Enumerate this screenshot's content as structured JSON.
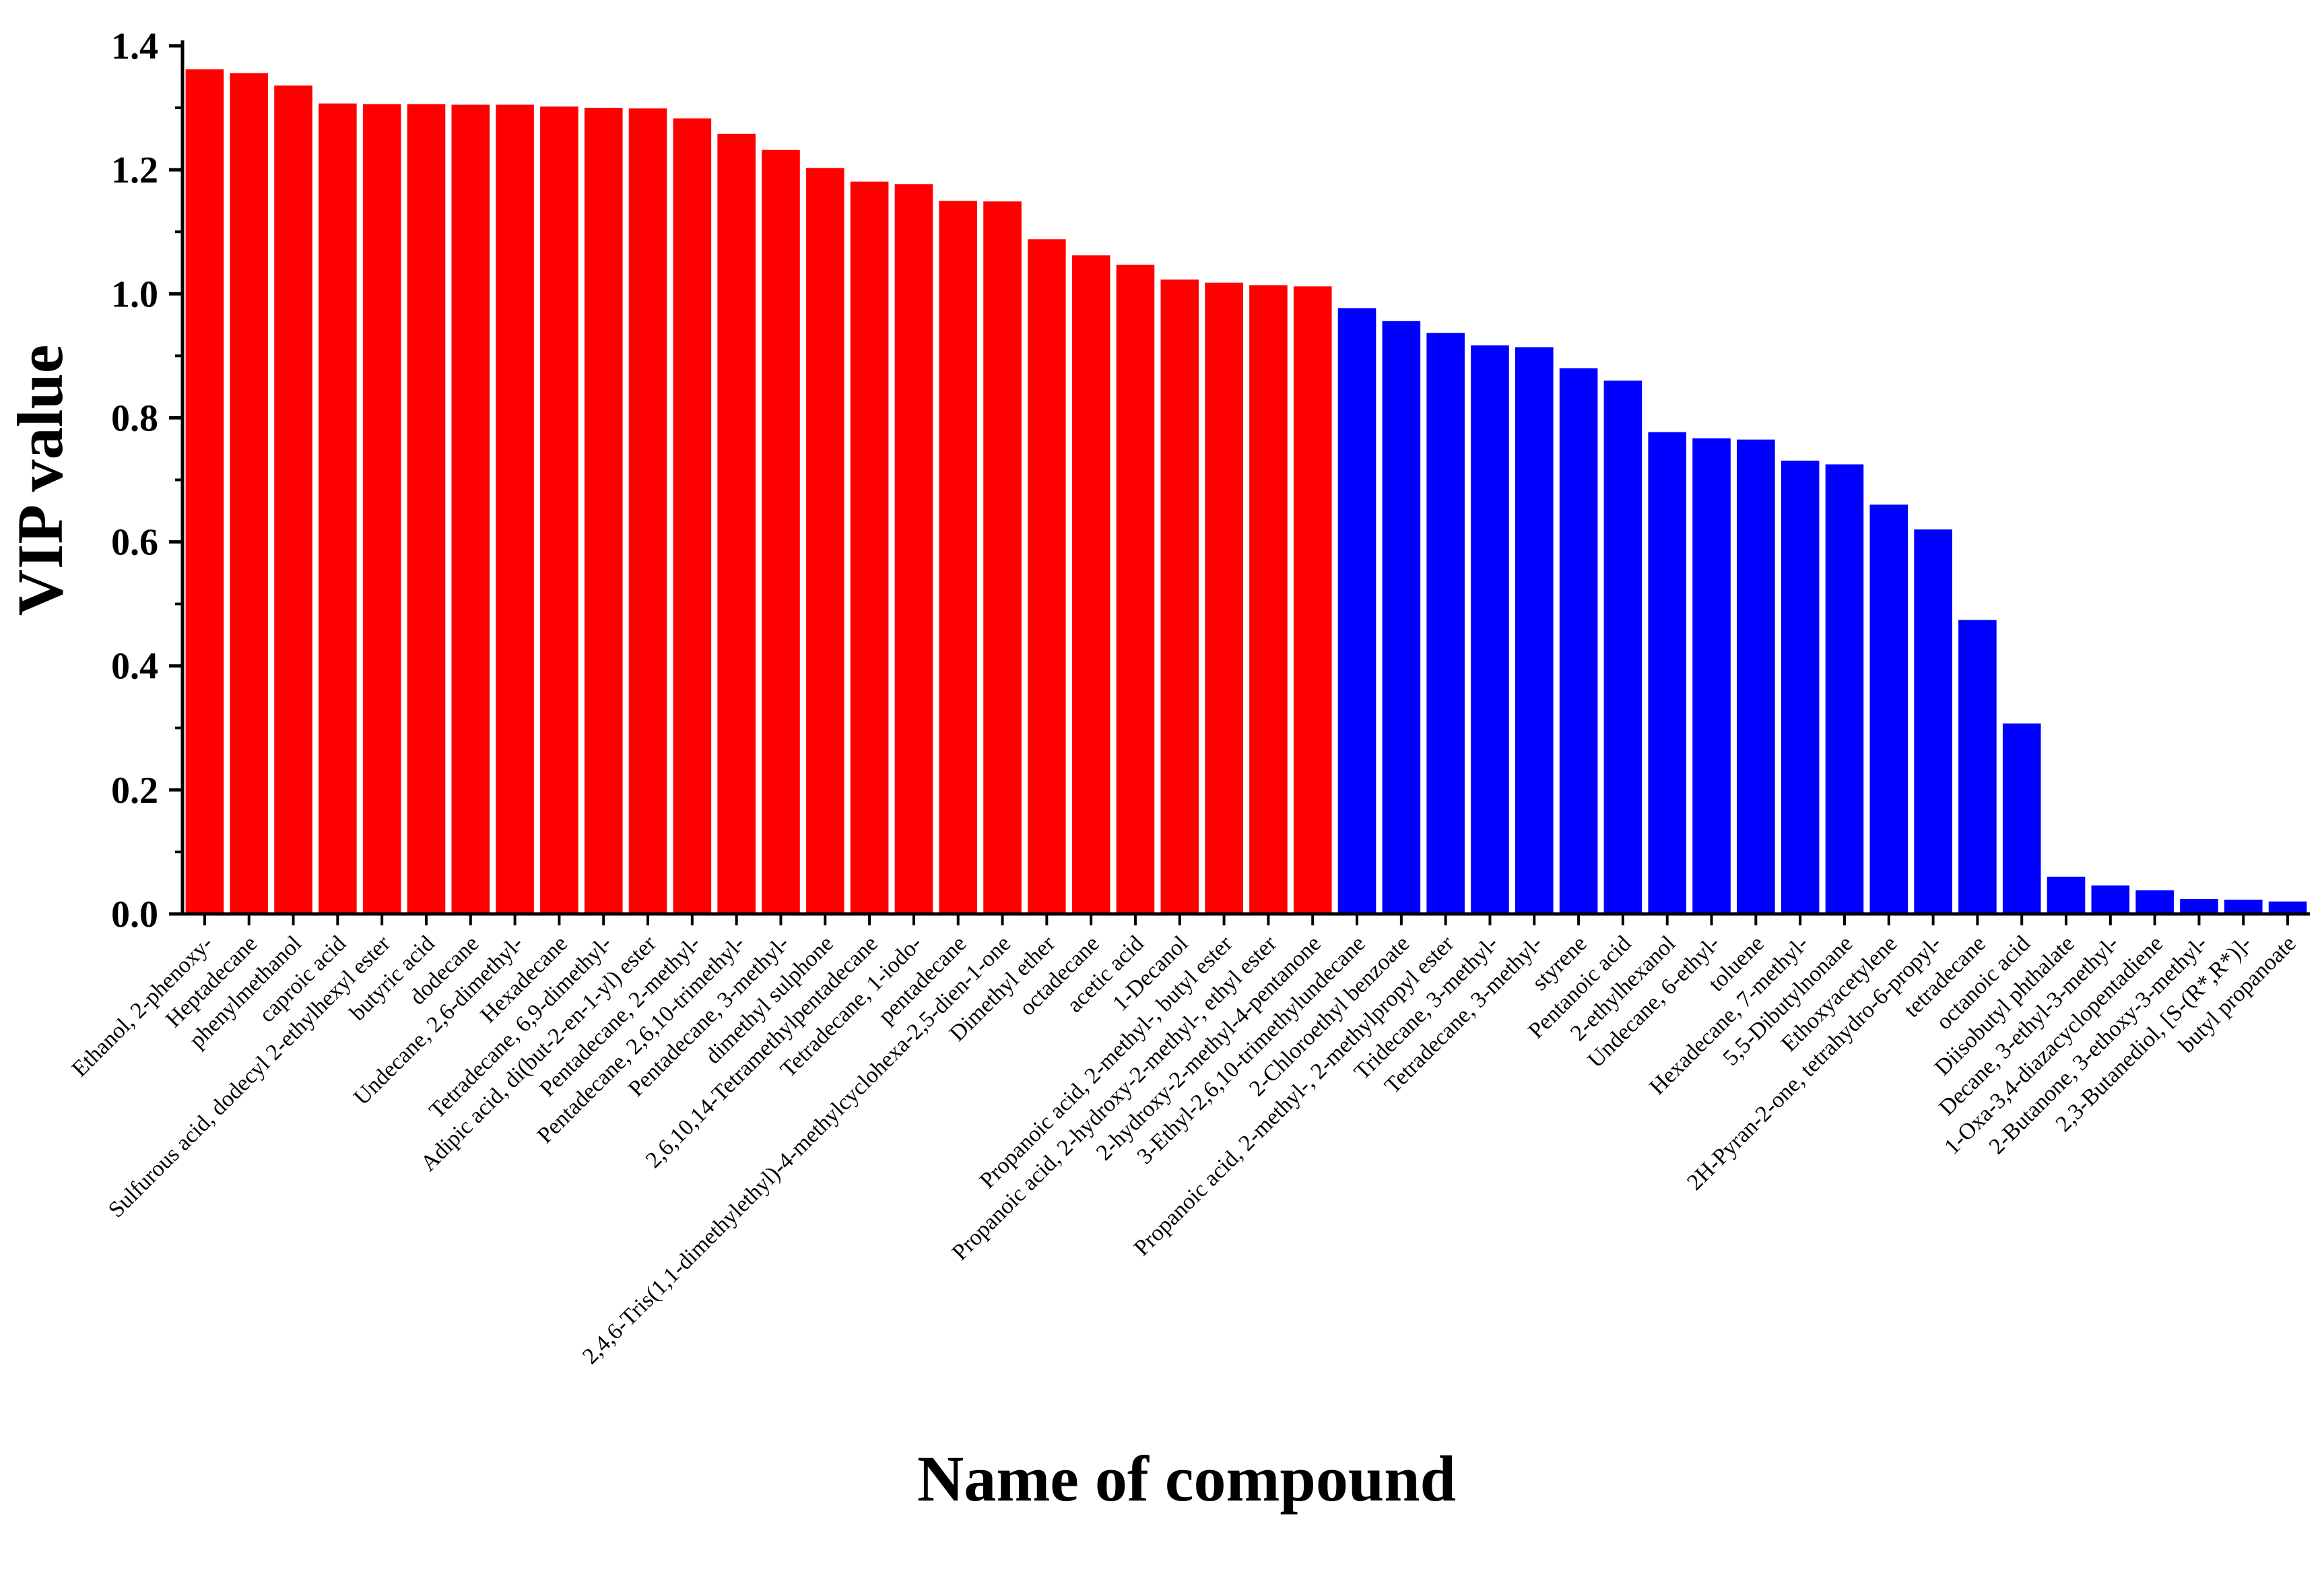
{
  "chart_data": {
    "type": "bar",
    "xlabel": "Name of compound",
    "ylabel": "VIP value",
    "ylim": [
      0,
      1.4
    ],
    "yticks": [
      "0.0",
      "0.2",
      "0.4",
      "0.6",
      "0.8",
      "1.0",
      "1.2",
      "1.4"
    ],
    "grid": false,
    "colors": {
      "above_one": "#ff0000",
      "below_one": "#0000ff",
      "axis": "#000000"
    },
    "categories": [
      "Ethanol, 2-phenoxy-",
      "Heptadecane",
      "phenylmethanol",
      "caproic acid",
      "Sulfurous acid, dodecyl 2-ethylhexyl ester",
      "butyric acid",
      "dodecane",
      "Undecane, 2,6-dimethyl-",
      "Hexadecane",
      "Tetradecane, 6,9-dimethyl-",
      "Adipic acid, di(but-2-en-1-yl) ester",
      "Pentadecane, 2-methyl-",
      "Pentadecane, 2,6,10-trimethyl-",
      "Pentadecane, 3-methyl-",
      "dimethyl sulphone",
      "2,6,10,14-Tetramethylpentadecane",
      "Tetradecane, 1-iodo-",
      "pentadecane",
      "2,4,6-Tris(1,1-dimethylethyl)-4-methylcyclohexa-2,5-dien-1-one",
      "Dimethyl ether",
      "octadecane",
      "acetic acid",
      "1-Decanol",
      "Propanoic acid, 2-methyl-, butyl ester",
      "Propanoic acid, 2-hydroxy-2-methyl-, ethyl ester",
      "2-hydroxy-2-methyl-4-pentanone",
      "3-Ethyl-2,6,10-trimethylundecane",
      "2-Chloroethyl benzoate",
      "Propanoic acid, 2-methyl-, 2-methylpropyl ester",
      "Tridecane, 3-methyl-",
      "Tetradecane, 3-methyl-",
      "styrene",
      "Pentanoic acid",
      "2-ethylhexanol",
      "Undecane, 6-ethyl-",
      "toluene",
      "Hexadecane, 7-methyl-",
      "5,5-Dibutylnonane",
      "Ethoxyacetylene",
      "2H-Pyran-2-one, tetrahydro-6-propyl-",
      "tetradecane",
      "octanoic acid",
      "Diisobutyl phthalate",
      "Decane, 3-ethyl-3-methyl-",
      "1-Oxa-3,4-diazacyclopentadiene",
      "2-Butanone, 3-ethoxy-3-methyl-",
      "2,3-Butanediol, [S-(R*,R*)]-",
      "butyl propanoate"
    ],
    "values": [
      1.362,
      1.356,
      1.336,
      1.307,
      1.306,
      1.306,
      1.305,
      1.305,
      1.302,
      1.3,
      1.299,
      1.283,
      1.258,
      1.232,
      1.203,
      1.181,
      1.177,
      1.15,
      1.149,
      1.088,
      1.062,
      1.047,
      1.023,
      1.018,
      1.014,
      1.012,
      0.977,
      0.956,
      0.937,
      0.917,
      0.914,
      0.88,
      0.86,
      0.777,
      0.767,
      0.765,
      0.731,
      0.725,
      0.66,
      0.62,
      0.474,
      0.307,
      0.06,
      0.046,
      0.038,
      0.024,
      0.023,
      0.02
    ]
  }
}
